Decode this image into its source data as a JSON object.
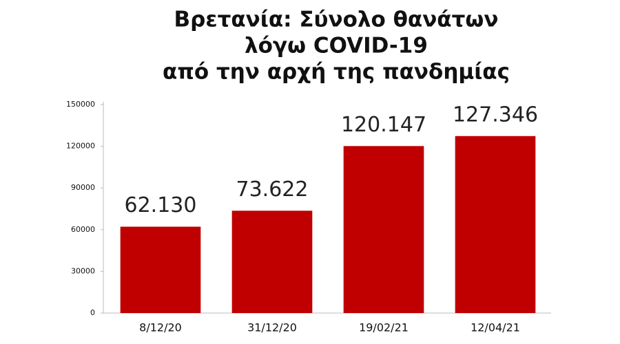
{
  "chart_data": {
    "type": "bar",
    "title": [
      "Βρετανία: Σύνολο θανάτων",
      "λόγω COVID-19",
      "από την αρχή της πανδημίας"
    ],
    "categories": [
      "8/12/20",
      "31/12/20",
      "19/02/21",
      "12/04/21"
    ],
    "values": [
      62130,
      73622,
      120147,
      127346
    ],
    "value_labels": [
      "62.130",
      "73.622",
      "120.147",
      "127.346"
    ],
    "color": "#c00000",
    "ylim": [
      0,
      150000
    ],
    "yticks": [
      0,
      30000,
      60000,
      90000,
      120000,
      150000
    ],
    "grid": false
  }
}
